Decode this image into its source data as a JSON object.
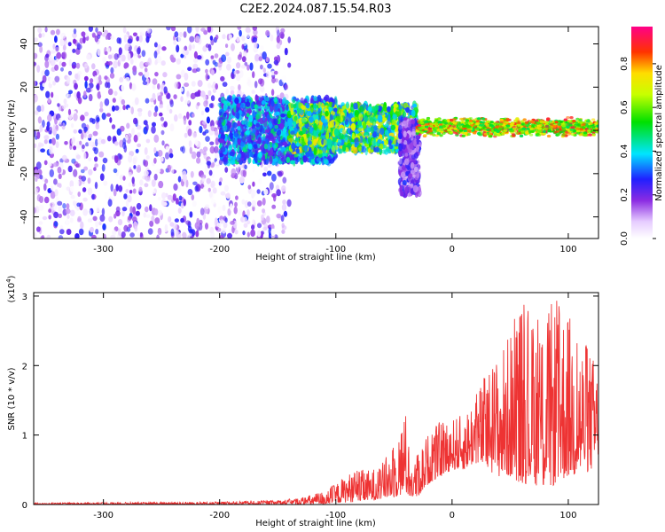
{
  "title": "C2E2.2024.087.15.54.R03",
  "colorbar": {
    "label": "Normalized spectral amplitude",
    "ticks": [
      "0.0",
      "0.2",
      "0.4",
      "0.6",
      "0.8"
    ],
    "tick_values": [
      0.0,
      0.2,
      0.4,
      0.6,
      0.8
    ],
    "range": [
      0,
      0.97
    ]
  },
  "chart_data": [
    {
      "type": "heatmap",
      "xlabel": "Height of straight line (km)",
      "ylabel": "Frequency (Hz)",
      "xlim": [
        -360,
        126
      ],
      "ylim": [
        -50,
        48
      ],
      "xticks": [
        -300,
        -200,
        -100,
        0,
        100
      ],
      "xtick_labels": [
        "-300",
        "-200",
        "-100",
        "0",
        "100"
      ],
      "yticks": [
        -40,
        -20,
        0,
        20,
        40
      ],
      "ytick_labels": [
        "-40",
        "-20",
        "0",
        "20",
        "40"
      ],
      "regions": [
        {
          "x": [
            -360,
            -140
          ],
          "y": [
            -50,
            48
          ],
          "amplitude": [
            0.0,
            0.3
          ],
          "pattern": "broadband noise"
        },
        {
          "x": [
            -200,
            -100
          ],
          "y": [
            -15,
            15
          ],
          "amplitude": [
            0.2,
            0.5
          ],
          "pattern": "emerging signal"
        },
        {
          "x": [
            -140,
            -30
          ],
          "y": [
            -10,
            12
          ],
          "amplitude": [
            0.3,
            0.8
          ],
          "pattern": "clustered signal"
        },
        {
          "x": [
            -45,
            -28
          ],
          "y": [
            -30,
            5
          ],
          "amplitude": [
            0.1,
            0.3
          ],
          "pattern": "downward tail"
        },
        {
          "x": [
            -30,
            126
          ],
          "y": [
            -3,
            6
          ],
          "amplitude": [
            0.5,
            0.95
          ],
          "pattern": "narrow band near 0-2 Hz"
        }
      ]
    },
    {
      "type": "line",
      "xlabel": "Height of straight line (km)",
      "ylabel": "SNR (10 * v/v)",
      "y_multiplier": "(x10",
      "y_multiplier_exp": "4",
      "y_multiplier_close": ")",
      "xlim": [
        -360,
        126
      ],
      "ylim": [
        0,
        3.05
      ],
      "xticks": [
        -300,
        -200,
        -100,
        0,
        100
      ],
      "xtick_labels": [
        "-300",
        "-200",
        "-100",
        "0",
        "100"
      ],
      "yticks": [
        0,
        1,
        2,
        3
      ],
      "ytick_labels": [
        "0",
        "1",
        "2",
        "3"
      ],
      "color": "#ee3333",
      "series": [
        {
          "x": [
            -360,
            -300,
            -200,
            -150,
            -130,
            -110,
            -100,
            -90,
            -80,
            -70,
            -60,
            -50,
            -40,
            -35,
            -30,
            -20,
            -10,
            0,
            10,
            20,
            30,
            40,
            50,
            60,
            70,
            80,
            90,
            100,
            110,
            120,
            126
          ],
          "envelope_low": [
            0,
            0,
            0,
            0,
            0,
            0,
            0.02,
            0.03,
            0.04,
            0.05,
            0.08,
            0.1,
            0.15,
            0.1,
            0.1,
            0.3,
            0.4,
            0.5,
            0.5,
            0.6,
            0.5,
            0.4,
            0.4,
            0.3,
            0.3,
            0.2,
            0.3,
            0.4,
            0.4,
            0.5,
            0.6
          ],
          "envelope_high": [
            0.02,
            0.03,
            0.04,
            0.06,
            0.1,
            0.2,
            0.3,
            0.45,
            0.5,
            0.5,
            0.6,
            0.9,
            1.35,
            0.5,
            0.75,
            1.05,
            1.2,
            1.25,
            1.3,
            1.6,
            1.95,
            2.2,
            2.5,
            3.05,
            2.6,
            2.85,
            2.95,
            2.8,
            2.45,
            2.2,
            2.0
          ]
        }
      ]
    }
  ]
}
